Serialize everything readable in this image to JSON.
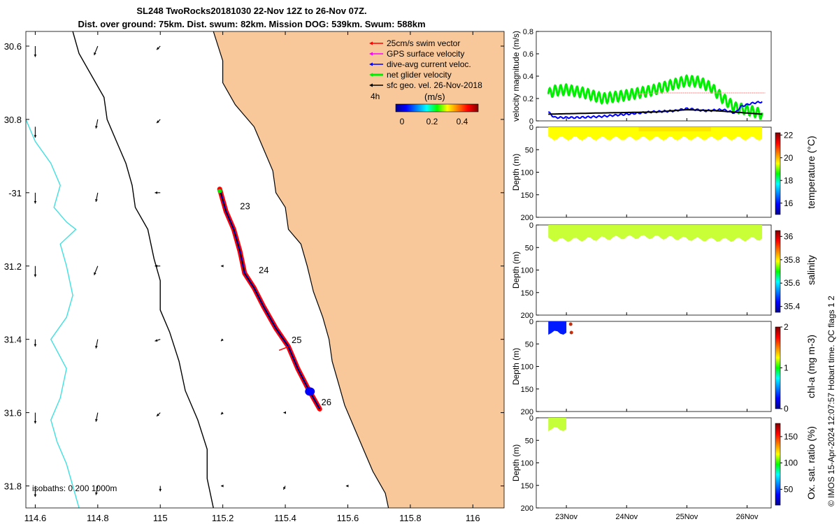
{
  "title": {
    "line1": "SL248 TwoRocks20181030 22-Nov 12Z to 26-Nov 07Z.",
    "line2": "Dist. over ground: 75km. Dist. swum: 82km. Mission DOG: 539km. Swum: 588km"
  },
  "credit": "© IMOS 15-Apr-2024 12:07:57 Hobart time. QC flags 1  2",
  "colors": {
    "land": "#f9c89a",
    "coast": "#000000",
    "isobath0": "#40e0e0",
    "track": "#ff0000",
    "swim": "#ff0000",
    "gps": "#ff00ff",
    "dive_avg": "#0000ff",
    "net": "#00ee00",
    "geo": "#000000",
    "ref_line": "#ff9090"
  },
  "chart_data": [
    {
      "type": "map",
      "xlim": [
        114.57,
        116.1
      ],
      "ylim": [
        -31.86,
        -30.56
      ],
      "xticks": [
        114.6,
        114.8,
        115,
        115.2,
        115.4,
        115.6,
        115.8,
        116
      ],
      "xtick_labels": [
        "114.6",
        "114.8",
        "115",
        "115.2",
        "115.4",
        "115.6",
        "115.8",
        "116"
      ],
      "yticks": [
        -30.6,
        -30.8,
        -31,
        -31.2,
        -31.4,
        -31.6,
        -31.8
      ],
      "ytick_labels": [
        "30.6",
        "30.8",
        "-31",
        "31.2",
        "31.4",
        "31.6",
        "31.8"
      ],
      "isobaths_label": "isobaths: 0   200  1000m",
      "legend": [
        {
          "label": "25cm/s swim vector",
          "color": "#ff0000"
        },
        {
          "label": "GPS surface velocity",
          "color": "#ff00ff"
        },
        {
          "label": "dive-avg current veloc.",
          "color": "#0000ff"
        },
        {
          "label": "net glider velocity",
          "color": "#00ee00"
        },
        {
          "label": "sfc geo. vel. 26-Nov-2018",
          "color": "#000000"
        }
      ],
      "timestep_label": "4h",
      "colorbar": {
        "label": "(m/s)",
        "ticks": [
          "0",
          "0.2",
          "0.4"
        ],
        "range": [
          0,
          0.5
        ]
      },
      "track": [
        [
          115.19,
          -30.99
        ],
        [
          115.21,
          -31.05
        ],
        [
          115.235,
          -31.1
        ],
        [
          115.255,
          -31.16
        ],
        [
          115.27,
          -31.22
        ],
        [
          115.3,
          -31.26
        ],
        [
          115.33,
          -31.31
        ],
        [
          115.37,
          -31.37
        ],
        [
          115.41,
          -31.42
        ],
        [
          115.44,
          -31.48
        ],
        [
          115.47,
          -31.53
        ],
        [
          115.51,
          -31.59
        ]
      ],
      "day_labels": [
        {
          "label": "23",
          "lon": 115.255,
          "lat": -31.045
        },
        {
          "label": "24",
          "lon": 115.315,
          "lat": -31.22
        },
        {
          "label": "25",
          "lon": 115.42,
          "lat": -31.41
        },
        {
          "label": "26",
          "lon": 115.515,
          "lat": -31.58
        }
      ],
      "coastline": [
        [
          115.17,
          -30.56
        ],
        [
          115.2,
          -30.64
        ],
        [
          115.2,
          -30.7
        ],
        [
          115.24,
          -30.76
        ],
        [
          115.3,
          -30.82
        ],
        [
          115.33,
          -30.88
        ],
        [
          115.36,
          -30.94
        ],
        [
          115.37,
          -31.0
        ],
        [
          115.4,
          -31.04
        ],
        [
          115.41,
          -31.1
        ],
        [
          115.45,
          -31.14
        ],
        [
          115.47,
          -31.2
        ],
        [
          115.49,
          -31.27
        ],
        [
          115.52,
          -31.34
        ],
        [
          115.54,
          -31.4
        ],
        [
          115.55,
          -31.46
        ],
        [
          115.57,
          -31.52
        ],
        [
          115.59,
          -31.58
        ],
        [
          115.62,
          -31.64
        ],
        [
          115.65,
          -31.7
        ],
        [
          115.68,
          -31.76
        ],
        [
          115.72,
          -31.82
        ],
        [
          115.73,
          -31.86
        ]
      ],
      "isobath_0": [
        [
          114.57,
          -30.8
        ],
        [
          114.6,
          -30.86
        ],
        [
          114.65,
          -30.92
        ],
        [
          114.68,
          -30.98
        ],
        [
          114.66,
          -31.04
        ],
        [
          114.7,
          -31.08
        ],
        [
          114.73,
          -31.1
        ],
        [
          114.68,
          -31.14
        ],
        [
          114.7,
          -31.2
        ],
        [
          114.72,
          -31.28
        ],
        [
          114.7,
          -31.34
        ],
        [
          114.65,
          -31.4
        ],
        [
          114.7,
          -31.48
        ],
        [
          114.68,
          -31.56
        ],
        [
          114.65,
          -31.62
        ],
        [
          114.67,
          -31.68
        ],
        [
          114.7,
          -31.74
        ],
        [
          114.72,
          -31.8
        ],
        [
          114.74,
          -31.86
        ]
      ],
      "isobath_200": [
        [
          114.72,
          -30.56
        ],
        [
          114.74,
          -30.62
        ],
        [
          114.78,
          -30.68
        ],
        [
          114.82,
          -30.74
        ],
        [
          114.83,
          -30.8
        ],
        [
          114.86,
          -30.86
        ],
        [
          114.89,
          -30.92
        ],
        [
          114.91,
          -30.98
        ],
        [
          114.92,
          -31.04
        ],
        [
          114.96,
          -31.1
        ],
        [
          114.98,
          -31.18
        ],
        [
          115.0,
          -31.24
        ],
        [
          115.0,
          -31.32
        ],
        [
          115.03,
          -31.38
        ],
        [
          115.06,
          -31.46
        ],
        [
          115.08,
          -31.54
        ],
        [
          115.12,
          -31.62
        ],
        [
          115.15,
          -31.7
        ],
        [
          115.15,
          -31.78
        ],
        [
          115.17,
          -31.86
        ]
      ],
      "geo_vectors": [
        {
          "lon": 114.6,
          "lat": -30.6,
          "u": 0.0,
          "v": -0.06
        },
        {
          "lon": 114.6,
          "lat": -30.82,
          "u": 0.0,
          "v": -0.06
        },
        {
          "lon": 114.6,
          "lat": -31.0,
          "u": 0.0,
          "v": -0.06
        },
        {
          "lon": 114.6,
          "lat": -31.2,
          "u": 0.0,
          "v": -0.06
        },
        {
          "lon": 114.6,
          "lat": -31.4,
          "u": 0.0,
          "v": -0.04
        },
        {
          "lon": 114.6,
          "lat": -31.6,
          "u": 0.0,
          "v": -0.06
        },
        {
          "lon": 114.6,
          "lat": -31.8,
          "u": 0.0,
          "v": -0.06
        },
        {
          "lon": 114.8,
          "lat": -30.6,
          "u": -0.02,
          "v": -0.05
        },
        {
          "lon": 114.8,
          "lat": -30.8,
          "u": -0.01,
          "v": -0.05
        },
        {
          "lon": 114.8,
          "lat": -31.0,
          "u": -0.01,
          "v": -0.05
        },
        {
          "lon": 114.8,
          "lat": -31.2,
          "u": -0.02,
          "v": -0.05
        },
        {
          "lon": 114.8,
          "lat": -31.4,
          "u": -0.01,
          "v": -0.05
        },
        {
          "lon": 114.8,
          "lat": -31.6,
          "u": -0.01,
          "v": -0.05
        },
        {
          "lon": 114.8,
          "lat": -31.8,
          "u": -0.01,
          "v": -0.05
        },
        {
          "lon": 115.0,
          "lat": -30.6,
          "u": -0.02,
          "v": -0.02
        },
        {
          "lon": 115.0,
          "lat": -30.8,
          "u": -0.02,
          "v": -0.02
        },
        {
          "lon": 115.0,
          "lat": -31.0,
          "u": -0.03,
          "v": 0.0
        },
        {
          "lon": 115.0,
          "lat": -31.2,
          "u": -0.03,
          "v": 0.0
        },
        {
          "lon": 115.0,
          "lat": -31.4,
          "u": -0.03,
          "v": -0.01
        },
        {
          "lon": 115.0,
          "lat": -31.6,
          "u": -0.02,
          "v": -0.02
        },
        {
          "lon": 115.0,
          "lat": -31.8,
          "u": 0.0,
          "v": -0.03
        },
        {
          "lon": 115.2,
          "lat": -31.2,
          "u": -0.01,
          "v": 0.0
        },
        {
          "lon": 115.2,
          "lat": -31.4,
          "u": -0.01,
          "v": -0.01
        },
        {
          "lon": 115.2,
          "lat": -31.6,
          "u": -0.01,
          "v": -0.01
        },
        {
          "lon": 115.2,
          "lat": -31.8,
          "u": -0.01,
          "v": 0.0
        },
        {
          "lon": 115.4,
          "lat": -31.6,
          "u": -0.01,
          "v": 0.0
        },
        {
          "lon": 115.4,
          "lat": -31.8,
          "u": -0.01,
          "v": -0.02
        },
        {
          "lon": 115.6,
          "lat": -31.8,
          "u": -0.01,
          "v": 0.0
        }
      ]
    },
    {
      "type": "line",
      "ylabel": "velocity magnitude (m/s)",
      "ylim": [
        0,
        0.8
      ],
      "yticks": [
        0,
        0.2,
        0.4,
        0.6,
        0.8
      ],
      "xlim": [
        22.5,
        26.4
      ],
      "series": [
        {
          "name": "net glider velocity",
          "color": "#00ee00",
          "x": [
            22.7,
            22.8,
            23.0,
            23.3,
            23.6,
            24.0,
            24.4,
            24.8,
            25.0,
            25.2,
            25.4,
            25.6,
            25.8,
            26.0,
            26.25
          ],
          "y": [
            0.24,
            0.27,
            0.28,
            0.25,
            0.2,
            0.23,
            0.27,
            0.33,
            0.36,
            0.35,
            0.3,
            0.2,
            0.12,
            0.1,
            0.06
          ]
        },
        {
          "name": "GPS reference",
          "color": "#ff9090",
          "x": [
            24.2,
            24.5,
            26.3
          ],
          "y": [
            0.24,
            0.25,
            0.25
          ]
        },
        {
          "name": "dive-avg current veloc.",
          "color": "#0000ff",
          "x": [
            22.7,
            22.8,
            23.2,
            23.6,
            24.0,
            24.4,
            24.8,
            25.0,
            25.3,
            25.6,
            25.8,
            25.9,
            26.1,
            26.25
          ],
          "y": [
            0.08,
            0.03,
            0.03,
            0.04,
            0.06,
            0.08,
            0.09,
            0.11,
            0.09,
            0.1,
            0.07,
            0.13,
            0.16,
            0.17
          ]
        },
        {
          "name": "sfc geo. vel.",
          "color": "#000000",
          "x": [
            22.7,
            23.5,
            24.5,
            25.0,
            25.5,
            26.0,
            26.25
          ],
          "y": [
            0.06,
            0.07,
            0.08,
            0.1,
            0.09,
            0.07,
            0.06
          ]
        }
      ]
    },
    {
      "type": "heatmap",
      "variable": "temperature",
      "ylabel": "Depth (m)",
      "ylim": [
        0,
        200
      ],
      "yticks": [
        "0",
        "50",
        "100",
        "150",
        "200"
      ],
      "xlim": [
        22.5,
        26.4
      ],
      "coverage": [
        22.7,
        26.25
      ],
      "depth_range": [
        0,
        25
      ],
      "colorbar_label": "temperature (°C)",
      "cbar_ticks": [
        "16",
        "18",
        "20",
        "22"
      ],
      "cbar_range": [
        15,
        22.2
      ],
      "value": 19.5
    },
    {
      "type": "heatmap",
      "variable": "salinity",
      "ylabel": "Depth (m)",
      "ylim": [
        0,
        200
      ],
      "yticks": [
        "0",
        "50",
        "100",
        "150",
        "200"
      ],
      "xlim": [
        22.5,
        26.4
      ],
      "coverage": [
        22.7,
        26.25
      ],
      "depth_range": [
        0,
        30
      ],
      "colorbar_label": "salinity",
      "cbar_ticks": [
        "35.4",
        "35.6",
        "35.8",
        "36"
      ],
      "cbar_range": [
        35.35,
        36.05
      ],
      "value": 35.75
    },
    {
      "type": "heatmap",
      "variable": "chl-a",
      "ylabel": "Depth (m)",
      "ylim": [
        0,
        200
      ],
      "yticks": [
        "0",
        "50",
        "100",
        "150",
        "200"
      ],
      "xlim": [
        22.5,
        26.4
      ],
      "coverage": [
        22.7,
        23.0
      ],
      "depth_range": [
        0,
        25
      ],
      "colorbar_label": "chl-a (mg m-3)",
      "cbar_ticks": [
        "0",
        "1",
        "2"
      ],
      "cbar_range": [
        0,
        2
      ],
      "value": 0.3
    },
    {
      "type": "heatmap",
      "variable": "oxygen",
      "ylabel": "Depth (m)",
      "ylim": [
        0,
        200
      ],
      "yticks": [
        "0",
        "50",
        "100",
        "150",
        "200"
      ],
      "xlim": [
        22.5,
        26.4
      ],
      "coverage": [
        22.7,
        23.0
      ],
      "depth_range": [
        0,
        25
      ],
      "colorbar_label": "Ox. sat. ratio (%)",
      "cbar_ticks": [
        "50",
        "100",
        "150"
      ],
      "cbar_range": [
        20,
        175
      ],
      "value": 108,
      "xticks": [
        23,
        24,
        25,
        26
      ],
      "xtick_labels": [
        "23Nov",
        "24Nov",
        "25Nov",
        "26Nov"
      ]
    }
  ]
}
